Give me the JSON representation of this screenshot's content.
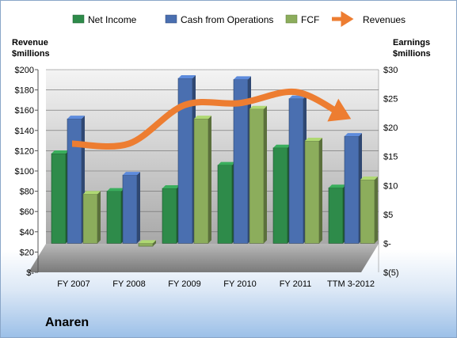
{
  "company": "Anaren",
  "chart_data": {
    "type": "bar",
    "categories": [
      "FY 2007",
      "FY 2008",
      "FY 2009",
      "FY 2010",
      "FY 2011",
      "TTM 3-2012"
    ],
    "series": [
      {
        "name": "Net Income",
        "axis": "right",
        "color": "#2e8b4a",
        "values": [
          15.5,
          9.0,
          9.5,
          13.5,
          16.5,
          9.6
        ]
      },
      {
        "name": "Cash from Operations",
        "axis": "right",
        "color": "#4a6fb0",
        "values": [
          21.5,
          11.8,
          28.5,
          28.3,
          25.0,
          18.5
        ]
      },
      {
        "name": "FCF",
        "axis": "right",
        "color": "#8cad5c",
        "values": [
          8.5,
          -0.5,
          21.5,
          23.2,
          17.7,
          11.0
        ]
      }
    ],
    "line_series": {
      "name": "Revenues",
      "axis": "left",
      "color": "#ed7d31",
      "values": [
        127,
        127,
        165,
        167,
        178,
        156
      ]
    },
    "left_axis": {
      "label_line1": "Revenue",
      "label_line2": "$millions",
      "min": 0,
      "max": 200,
      "ticks": [
        "$-",
        "$20",
        "$40",
        "$60",
        "$80",
        "$100",
        "$120",
        "$140",
        "$160",
        "$180",
        "$200"
      ]
    },
    "right_axis": {
      "label_line1": "Earnings",
      "label_line2": "$millions",
      "min": -5,
      "max": 30,
      "ticks": [
        "$(5)",
        "$-",
        "$5",
        "$10",
        "$15",
        "$20",
        "$25",
        "$30"
      ]
    },
    "legend_position": "top",
    "grid": true
  }
}
